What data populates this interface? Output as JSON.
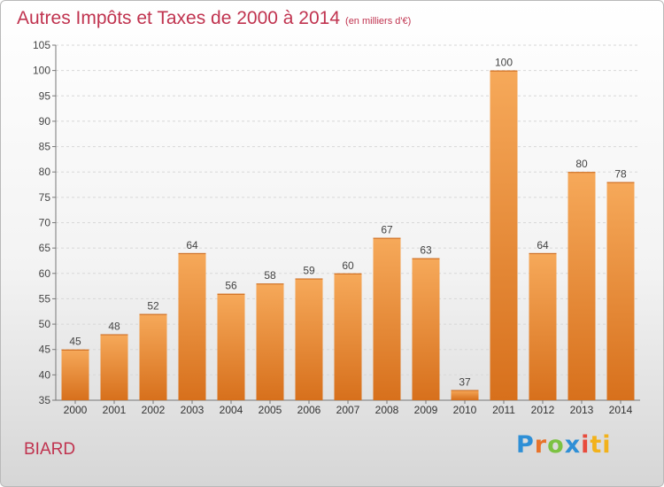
{
  "header": {
    "title": "Autres Impôts et Taxes de 2000 à 2014",
    "unit": "(en milliers d'€)"
  },
  "commune": "BIARD",
  "brand": {
    "letters": [
      "P",
      "r",
      "o",
      "x",
      "i",
      "ti"
    ]
  },
  "colors": {
    "title": "#c0334f",
    "bar_light": "#f6a95a",
    "bar_dark": "#d7701c"
  },
  "chart_data": {
    "type": "bar",
    "categories": [
      "2000",
      "2001",
      "2002",
      "2003",
      "2004",
      "2005",
      "2006",
      "2007",
      "2008",
      "2009",
      "2010",
      "2011",
      "2012",
      "2013",
      "2014"
    ],
    "values": [
      45,
      48,
      52,
      64,
      56,
      58,
      59,
      60,
      67,
      63,
      37,
      100,
      64,
      80,
      78
    ],
    "data_labels": [
      "45",
      "48",
      "52",
      "64",
      "56",
      "58",
      "59",
      "60",
      "67",
      "63",
      "37",
      "100",
      "64",
      "80",
      "78"
    ],
    "yticks": [
      "35",
      "40",
      "45",
      "50",
      "55",
      "60",
      "65",
      "70",
      "75",
      "80",
      "85",
      "90",
      "95",
      "100",
      "105"
    ],
    "ylim": [
      35,
      105
    ],
    "grid": true
  }
}
